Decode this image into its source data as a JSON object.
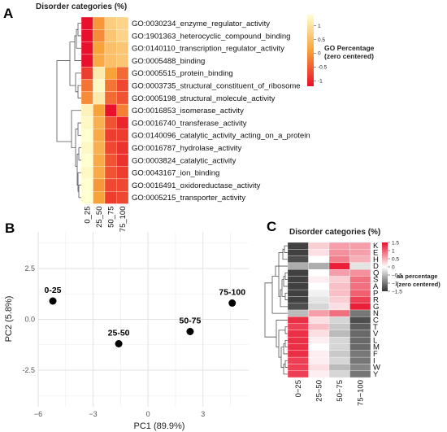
{
  "colors": {
    "go_low": "#e8102a",
    "go_mid": "#f8a23a",
    "go_high": "#ffffd0",
    "aa_low": "#333333",
    "aa_mid": "#ffffff",
    "aa_high": "#e8102a",
    "point": "#000000",
    "pca_grid": "#ececec"
  },
  "chart_data": [
    {
      "panel": "A",
      "type": "heatmap",
      "title": "Disorder categories (%)",
      "columns": [
        "0_25",
        "25_50",
        "50_75",
        "75_100"
      ],
      "rows": [
        "GO:0030234_enzyme_regulator_activity",
        "GO:1901363_heterocyclic_compound_binding",
        "GO:0140110_transcription_regulator_activity",
        "GO:0005488_binding",
        "GO:0005515_protein_binding",
        "GO:0003735_structural_constituent_of_ribosome",
        "GO:0005198_structural_molecule_activity",
        "GO:0016853_isomerase_activity",
        "GO:0016740_transferase_activity",
        "GO:0140096_catalytic_activity_acting_on_a_protein",
        "GO:0016787_hydrolase_activity",
        "GO:0003824_catalytic_activity",
        "GO:0043167_ion_binding",
        "GO:0016491_oxidoreductase_activity",
        "GO:0005215_transporter_activity"
      ],
      "values": [
        [
          -1.4,
          0.0,
          0.7,
          0.8
        ],
        [
          -1.3,
          -0.1,
          0.6,
          0.8
        ],
        [
          -1.2,
          0.1,
          0.5,
          0.6
        ],
        [
          -1.3,
          0.2,
          0.5,
          0.6
        ],
        [
          -0.8,
          1.1,
          0.1,
          -0.4
        ],
        [
          -0.3,
          1.3,
          -0.3,
          -0.7
        ],
        [
          -0.1,
          1.1,
          -0.4,
          -0.6
        ],
        [
          1.2,
          0.1,
          -1.2,
          -0.2
        ],
        [
          1.3,
          0.3,
          -0.6,
          -1.0
        ],
        [
          1.4,
          0.2,
          -0.8,
          -0.8
        ],
        [
          1.3,
          0.3,
          -0.7,
          -0.9
        ],
        [
          1.4,
          0.2,
          -0.6,
          -0.9
        ],
        [
          1.3,
          0.2,
          -0.6,
          -0.8
        ],
        [
          1.4,
          0.0,
          -0.7,
          -0.7
        ],
        [
          1.4,
          0.1,
          -0.8,
          -0.7
        ]
      ],
      "legend": {
        "title": "GO Percentage (zero centered)",
        "ticks": [
          "1",
          "0.5",
          "0",
          "-0.5",
          "-1"
        ],
        "min": -1.2,
        "max": 1.4
      }
    },
    {
      "panel": "B",
      "type": "scatter",
      "xlabel": "PC1 (89.9%)",
      "ylabel": "PC2 (5.8%)",
      "xlim": [
        -6,
        5.5
      ],
      "ylim": [
        -4.3,
        4.3
      ],
      "xticks": [
        -6,
        -3,
        0,
        3
      ],
      "yticks": [
        2.5,
        0.0,
        -2.5
      ],
      "ytick_labels": [
        "2.5",
        "0.0",
        "-2.5"
      ],
      "xtick_labels": [
        "−6",
        "−3",
        "0",
        "3"
      ],
      "grid": true,
      "points": [
        {
          "label": "0-25",
          "x": -5.2,
          "y": 0.9
        },
        {
          "label": "25-50",
          "x": -1.6,
          "y": -1.2
        },
        {
          "label": "50-75",
          "x": 2.3,
          "y": -0.6
        },
        {
          "label": "75-100",
          "x": 4.6,
          "y": 0.8
        }
      ]
    },
    {
      "panel": "C",
      "type": "heatmap",
      "title": "Disorder categories (%)",
      "columns": [
        "0−25",
        "25−50",
        "50−75",
        "75−100"
      ],
      "rows": [
        "K",
        "E",
        "H",
        "D",
        "Q",
        "S",
        "A",
        "P",
        "R",
        "G",
        "N",
        "C",
        "T",
        "V",
        "L",
        "M",
        "F",
        "I",
        "W",
        "Y"
      ],
      "values": [
        [
          -1.4,
          0.3,
          0.6,
          0.6
        ],
        [
          -1.4,
          0.2,
          0.7,
          0.6
        ],
        [
          -1.3,
          0.0,
          0.8,
          0.5
        ],
        [
          -0.6,
          -0.6,
          1.4,
          -0.2
        ],
        [
          -1.4,
          0.0,
          0.6,
          0.7
        ],
        [
          -1.4,
          0.1,
          0.3,
          0.9
        ],
        [
          -1.4,
          0.0,
          0.4,
          0.9
        ],
        [
          -1.4,
          -0.1,
          0.4,
          1.0
        ],
        [
          -1.4,
          -0.2,
          0.3,
          1.2
        ],
        [
          -1.3,
          -0.3,
          0.2,
          1.4
        ],
        [
          -0.5,
          0.6,
          0.9,
          -1.0
        ],
        [
          1.3,
          0.2,
          -0.3,
          -1.3
        ],
        [
          1.2,
          0.4,
          -0.4,
          -1.2
        ],
        [
          1.3,
          0.2,
          -0.5,
          -1.1
        ],
        [
          1.3,
          0.1,
          -0.3,
          -1.1
        ],
        [
          1.3,
          0.0,
          -0.3,
          -1.1
        ],
        [
          1.3,
          0.1,
          -0.4,
          -1.0
        ],
        [
          1.2,
          0.1,
          -0.3,
          -1.0
        ],
        [
          1.2,
          0.2,
          -0.5,
          -0.9
        ],
        [
          1.2,
          0.1,
          -0.3,
          -1.0
        ]
      ],
      "legend": {
        "title": "aa percentage (zero centered)",
        "ticks": [
          "1.5",
          "1",
          "0.5",
          "0",
          "−0.5",
          "−1",
          "−1.5"
        ],
        "min": -1.5,
        "max": 1.5
      }
    }
  ]
}
